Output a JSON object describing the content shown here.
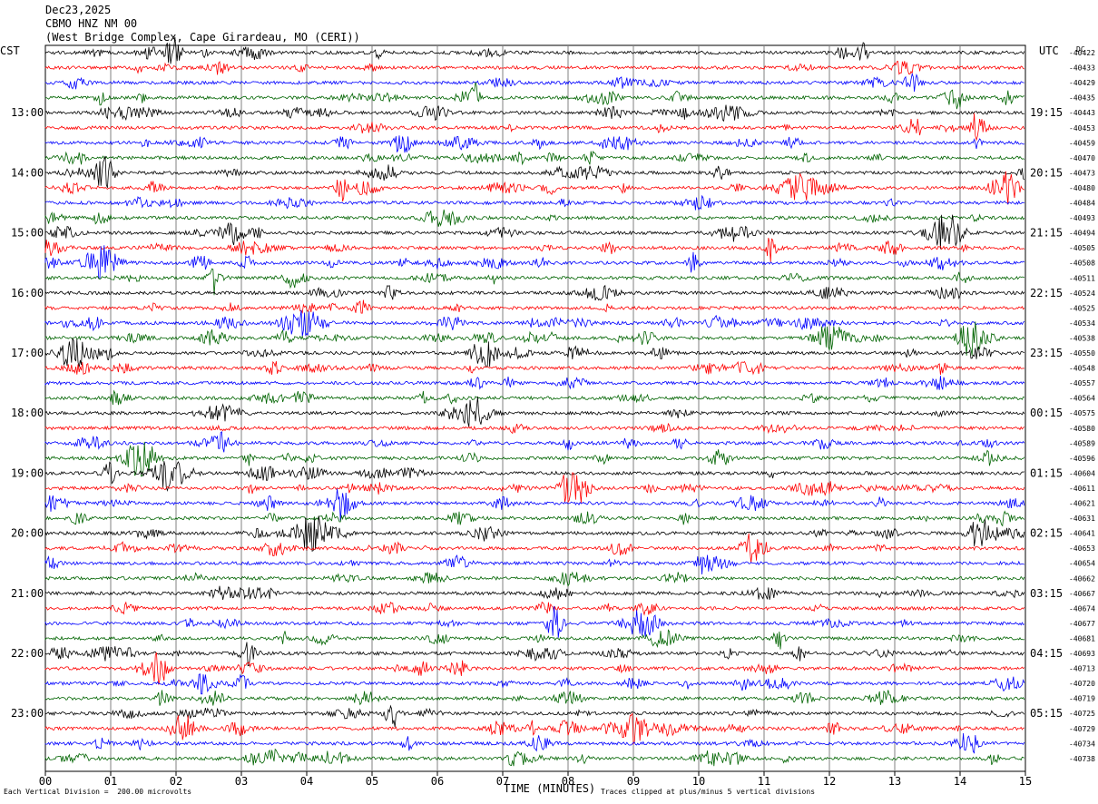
{
  "header": {
    "date": "Dec23,2025",
    "station": "CBMO HNZ NM 00",
    "location": "(West Bridge Complex, Cape Girardeau, MO (CERI))"
  },
  "left_tz": "CST",
  "right_tz": "UTC",
  "dc_label": "DC",
  "footer": {
    "scale_note": "Each Vertical Division =  200.00 microvolts",
    "clip_note": "Traces clipped at plus/minus 5 vertical divisions"
  },
  "colors": {
    "trace_cycle": [
      "#000000",
      "#ff0000",
      "#0000ff",
      "#006400"
    ],
    "grid": "#808080"
  },
  "chart_data": {
    "type": "line",
    "title": "",
    "xlabel": "TIME (MINUTES)",
    "ylabel": "",
    "xlim": [
      0,
      15
    ],
    "x_ticks": [
      "00",
      "01",
      "02",
      "03",
      "04",
      "05",
      "06",
      "07",
      "08",
      "09",
      "10",
      "11",
      "12",
      "13",
      "14",
      "15"
    ],
    "left_hour_labels": [
      "13:00",
      "14:00",
      "15:00",
      "16:00",
      "17:00",
      "18:00",
      "19:00",
      "20:00",
      "21:00",
      "22:00",
      "23:00"
    ],
    "right_hour_labels": [
      "19:15",
      "20:15",
      "21:15",
      "22:15",
      "23:15",
      "00:15",
      "01:15",
      "02:15",
      "03:15",
      "04:15",
      "05:15"
    ],
    "dc_offsets": [
      "-40422",
      "-40433",
      "-40429",
      "-40435",
      "-40443",
      "-40453",
      "-40459",
      "-40470",
      "-40473",
      "-40480",
      "-40484",
      "-40493",
      "-40494",
      "-40505",
      "-40508",
      "-40511",
      "-40524",
      "-40525",
      "-40534",
      "-40538",
      "-40550",
      "-40548",
      "-40557",
      "-40564",
      "-40575",
      "-40580",
      "-40589",
      "-40596",
      "-40604",
      "-40611",
      "-40621",
      "-40631",
      "-40641",
      "-40653",
      "-40654",
      "-40662",
      "-40667",
      "-40674",
      "-40677",
      "-40681",
      "-40693",
      "-40713",
      "-40720",
      "-40719",
      "-40725",
      "-40729",
      "-40734",
      "-40738"
    ],
    "trace_count": 48,
    "minutes_per_trace": 15,
    "grid": true
  }
}
